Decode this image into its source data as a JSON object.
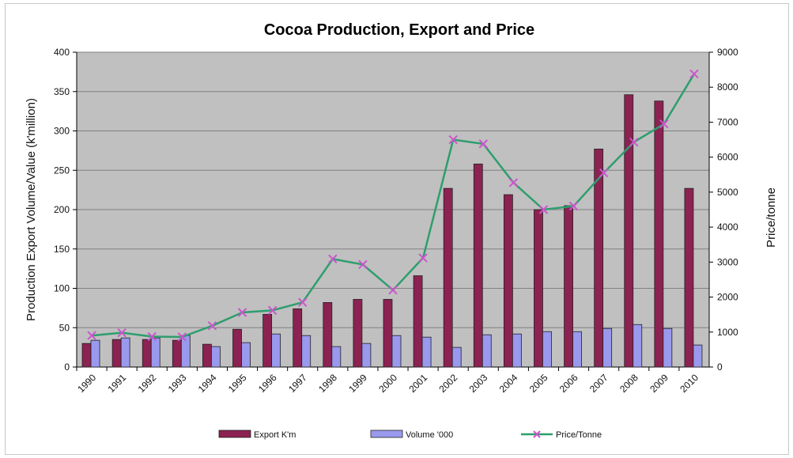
{
  "chart_data": {
    "type": "bar",
    "title": "Cocoa Production, Export and Price",
    "categories": [
      "1990",
      "1991",
      "1992",
      "1993",
      "1994",
      "1995",
      "1996",
      "1997",
      "1998",
      "1999",
      "2000",
      "2001",
      "2002",
      "2003",
      "2004",
      "2005",
      "2006",
      "2007",
      "2008",
      "2009",
      "2010"
    ],
    "ylabel": "Production Export Volume/Value (k'million)",
    "y2label": "Price/tonne",
    "ylim": [
      0,
      400
    ],
    "y2lim": [
      0,
      9000
    ],
    "yticks": [
      0,
      50,
      100,
      150,
      200,
      250,
      300,
      350,
      400
    ],
    "y2ticks": [
      0,
      1000,
      2000,
      3000,
      4000,
      5000,
      6000,
      7000,
      8000,
      9000
    ],
    "grid": true,
    "legend_position": "bottom",
    "series": [
      {
        "name": "Export K'm",
        "kind": "bar",
        "axis": "left",
        "color": "#8b2252",
        "values": [
          30,
          35,
          35,
          34,
          29,
          48,
          67,
          74,
          82,
          86,
          86,
          116,
          227,
          258,
          219,
          200,
          205,
          277,
          346,
          338,
          227
        ]
      },
      {
        "name": "Volume '000",
        "kind": "bar",
        "axis": "left",
        "color": "#9999ee",
        "values": [
          34,
          37,
          37,
          40,
          26,
          31,
          42,
          40,
          26,
          30,
          40,
          38,
          25,
          41,
          42,
          45,
          45,
          49,
          54,
          49,
          28
        ]
      },
      {
        "name": "Price/Tonne",
        "kind": "line",
        "axis": "right",
        "color": "#2e9e6e",
        "marker_color": "#cc55cc",
        "values": [
          900,
          980,
          870,
          860,
          1180,
          1560,
          1620,
          1850,
          3090,
          2930,
          2200,
          3120,
          6500,
          6380,
          5270,
          4500,
          4600,
          5550,
          6430,
          6950,
          8380
        ]
      }
    ]
  },
  "colors": {
    "plot_background": "#c0c0c0",
    "gridline": "#808080"
  }
}
